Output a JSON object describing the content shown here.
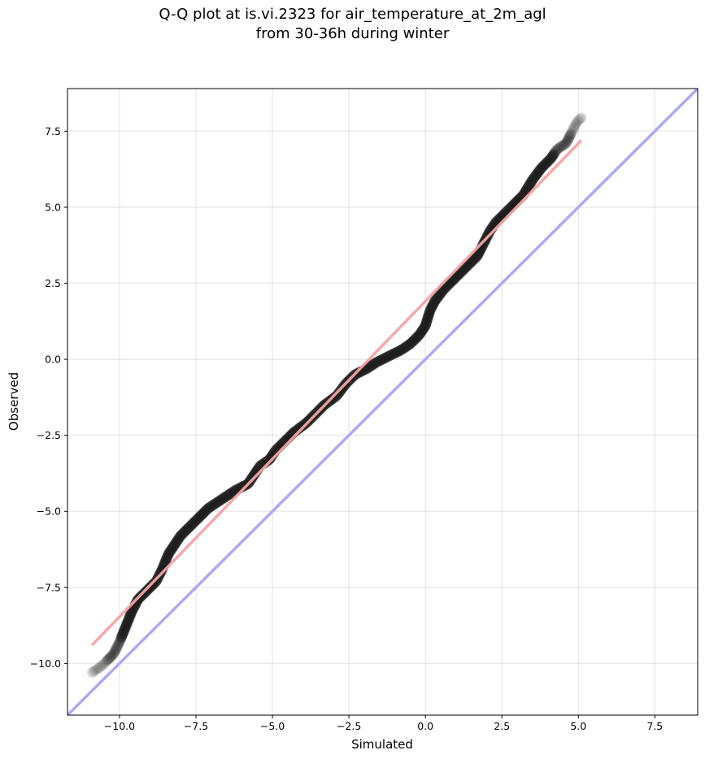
{
  "chart_data": {
    "type": "scatter",
    "title": "Q-Q plot at is.vi.2323 for air_temperature_at_2m_agl",
    "subtitle": "from 30-36h during winter",
    "xlabel": "Simulated",
    "ylabel": "Observed",
    "xlim": [
      -11.7,
      8.9
    ],
    "ylim": [
      -11.7,
      8.9
    ],
    "grid": true,
    "x_ticks": [
      -10.0,
      -7.5,
      -5.0,
      -2.5,
      0.0,
      2.5,
      5.0,
      7.5
    ],
    "x_tick_labels": [
      "−10.0",
      "−7.5",
      "−5.0",
      "−2.5",
      "0.0",
      "2.5",
      "5.0",
      "7.5"
    ],
    "y_ticks": [
      -10.0,
      -7.5,
      -5.0,
      -2.5,
      0.0,
      2.5,
      5.0,
      7.5
    ],
    "y_tick_labels": [
      "−10.0",
      "−7.5",
      "−5.0",
      "−2.5",
      "0.0",
      "2.5",
      "5.0",
      "7.5"
    ],
    "quantile_curve": [
      [
        -10.9,
        -10.3
      ],
      [
        -10.6,
        -10.1
      ],
      [
        -10.2,
        -9.7
      ],
      [
        -10.0,
        -9.3
      ],
      [
        -9.8,
        -8.8
      ],
      [
        -9.6,
        -8.3
      ],
      [
        -9.4,
        -7.9
      ],
      [
        -9.1,
        -7.6
      ],
      [
        -8.8,
        -7.3
      ],
      [
        -8.6,
        -6.9
      ],
      [
        -8.4,
        -6.4
      ],
      [
        -8.2,
        -6.1
      ],
      [
        -8.0,
        -5.8
      ],
      [
        -7.7,
        -5.5
      ],
      [
        -7.4,
        -5.2
      ],
      [
        -7.1,
        -4.9
      ],
      [
        -6.8,
        -4.7
      ],
      [
        -6.5,
        -4.5
      ],
      [
        -6.2,
        -4.3
      ],
      [
        -5.8,
        -4.1
      ],
      [
        -5.6,
        -3.8
      ],
      [
        -5.4,
        -3.5
      ],
      [
        -5.1,
        -3.3
      ],
      [
        -4.9,
        -3.0
      ],
      [
        -4.6,
        -2.7
      ],
      [
        -4.3,
        -2.4
      ],
      [
        -3.9,
        -2.1
      ],
      [
        -3.6,
        -1.8
      ],
      [
        -3.3,
        -1.5
      ],
      [
        -2.9,
        -1.2
      ],
      [
        -2.6,
        -0.8
      ],
      [
        -2.3,
        -0.5
      ],
      [
        -1.9,
        -0.3
      ],
      [
        -1.6,
        -0.1
      ],
      [
        -1.2,
        0.1
      ],
      [
        -0.8,
        0.3
      ],
      [
        -0.5,
        0.5
      ],
      [
        -0.2,
        0.8
      ],
      [
        0.0,
        1.1
      ],
      [
        0.15,
        1.6
      ],
      [
        0.3,
        1.9
      ],
      [
        0.6,
        2.3
      ],
      [
        0.9,
        2.6
      ],
      [
        1.2,
        2.9
      ],
      [
        1.5,
        3.2
      ],
      [
        1.7,
        3.4
      ],
      [
        1.9,
        3.8
      ],
      [
        2.1,
        4.2
      ],
      [
        2.3,
        4.5
      ],
      [
        2.6,
        4.8
      ],
      [
        2.9,
        5.1
      ],
      [
        3.2,
        5.4
      ],
      [
        3.5,
        5.9
      ],
      [
        3.8,
        6.3
      ],
      [
        4.1,
        6.6
      ],
      [
        4.3,
        6.9
      ],
      [
        4.6,
        7.1
      ],
      [
        4.8,
        7.5
      ],
      [
        4.95,
        7.8
      ],
      [
        5.1,
        7.95
      ]
    ],
    "fit_line": {
      "x": [
        -10.9,
        5.1
      ],
      "y": [
        -9.4,
        7.2
      ],
      "color": "#f4a3a3"
    },
    "identity_line": {
      "color": "#aaaaf5"
    },
    "marker_color": "#1a1a1a"
  }
}
